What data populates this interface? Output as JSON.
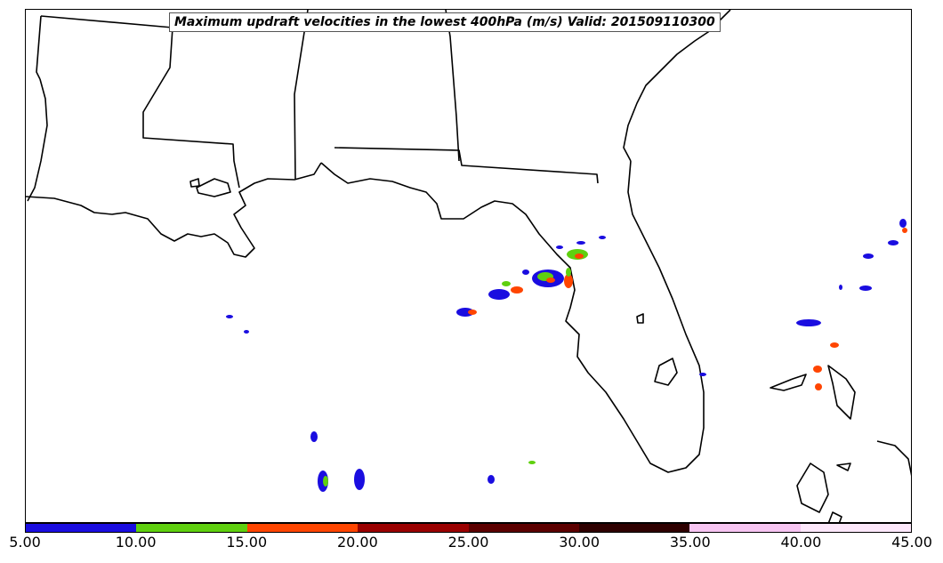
{
  "title": "Maximum updraft velocities in the lowest 400hPa (m/s) Valid: 201509110300",
  "colorbar": {
    "ticks": [
      "5.00",
      "10.00",
      "15.00",
      "20.00",
      "25.00",
      "30.00",
      "35.00",
      "40.00",
      "45.00"
    ],
    "colors": [
      "#1a0de0",
      "#5fd00f",
      "#ff4500",
      "#9a0000",
      "#5c0000",
      "#2e0000",
      "#f7c5f2",
      "#fde8fb"
    ]
  },
  "map": {
    "background": "#ffffff",
    "line_color": "#000000"
  }
}
